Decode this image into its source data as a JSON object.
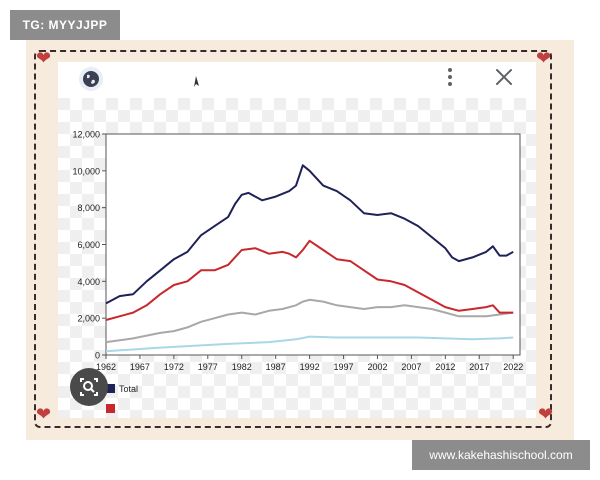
{
  "overlay": {
    "tag_label": "TG: MYYJJPP",
    "site_label": "www.kakehashischool.com"
  },
  "icons": {
    "globe": "globe-icon",
    "cursor": "cursor-icon",
    "menu": "more-vertical-icon",
    "close": "close-icon",
    "lens": "image-search-icon"
  },
  "colors": {
    "total": "#1f2257",
    "series2": "#c8282d",
    "series3": "#a8a8a8",
    "series4": "#a9d7e8"
  },
  "chart_data": {
    "type": "line",
    "title": "",
    "xlabel": "",
    "ylabel": "",
    "xlim": [
      1962,
      2023
    ],
    "ylim": [
      0,
      12000
    ],
    "yticks": [
      "0",
      "2,000",
      "4,000",
      "6,000",
      "8,000",
      "10,000",
      "12,000"
    ],
    "ytick_values": [
      0,
      2000,
      4000,
      6000,
      8000,
      10000,
      12000
    ],
    "xticks": [
      "1962",
      "1967",
      "1972",
      "1977",
      "1982",
      "1987",
      "1992",
      "1997",
      "2002",
      "2007",
      "2012",
      "2017",
      "2022"
    ],
    "xtick_values": [
      1962,
      1967,
      1972,
      1977,
      1982,
      1987,
      1992,
      1997,
      2002,
      2007,
      2012,
      2017,
      2022
    ],
    "grid": false,
    "legend_position": "bottom-left",
    "series": [
      {
        "name": "Total",
        "color": "#1f2257",
        "x": [
          1962,
          1964,
          1966,
          1968,
          1970,
          1972,
          1974,
          1976,
          1978,
          1980,
          1981,
          1982,
          1983,
          1985,
          1987,
          1989,
          1990,
          1991,
          1992,
          1994,
          1996,
          1998,
          2000,
          2002,
          2004,
          2006,
          2008,
          2010,
          2012,
          2013,
          2014,
          2016,
          2018,
          2019,
          2020,
          2021,
          2022
        ],
        "y": [
          2800,
          3200,
          3300,
          4000,
          4600,
          5200,
          5600,
          6500,
          7000,
          7500,
          8200,
          8700,
          8800,
          8400,
          8600,
          8900,
          9200,
          10300,
          10000,
          9200,
          8900,
          8400,
          7700,
          7600,
          7700,
          7400,
          7000,
          6400,
          5800,
          5300,
          5100,
          5300,
          5600,
          5900,
          5400,
          5400,
          5600
        ]
      },
      {
        "name": "",
        "color": "#c8282d",
        "x": [
          1962,
          1964,
          1966,
          1968,
          1970,
          1972,
          1974,
          1976,
          1978,
          1980,
          1982,
          1984,
          1986,
          1988,
          1989,
          1990,
          1991,
          1992,
          1994,
          1996,
          1998,
          2000,
          2002,
          2004,
          2006,
          2008,
          2010,
          2012,
          2014,
          2016,
          2018,
          2019,
          2020,
          2022
        ],
        "y": [
          1900,
          2100,
          2300,
          2700,
          3300,
          3800,
          4000,
          4600,
          4600,
          4900,
          5700,
          5800,
          5500,
          5600,
          5500,
          5300,
          5700,
          6200,
          5700,
          5200,
          5100,
          4600,
          4100,
          4000,
          3800,
          3400,
          3000,
          2600,
          2400,
          2500,
          2600,
          2700,
          2300,
          2300
        ]
      },
      {
        "name": "",
        "color": "#a8a8a8",
        "x": [
          1962,
          1966,
          1970,
          1972,
          1974,
          1976,
          1978,
          1980,
          1982,
          1984,
          1986,
          1988,
          1990,
          1991,
          1992,
          1994,
          1996,
          1998,
          2000,
          2002,
          2004,
          2006,
          2008,
          2010,
          2012,
          2014,
          2016,
          2018,
          2020,
          2022
        ],
        "y": [
          700,
          900,
          1200,
          1300,
          1500,
          1800,
          2000,
          2200,
          2300,
          2200,
          2400,
          2500,
          2700,
          2900,
          3000,
          2900,
          2700,
          2600,
          2500,
          2600,
          2600,
          2700,
          2600,
          2500,
          2300,
          2100,
          2100,
          2100,
          2200,
          2300
        ]
      },
      {
        "name": "",
        "color": "#a9d7e8",
        "x": [
          1962,
          1970,
          1980,
          1986,
          1990,
          1992,
          1996,
          2000,
          2004,
          2008,
          2012,
          2016,
          2020,
          2022
        ],
        "y": [
          200,
          400,
          600,
          700,
          850,
          1000,
          950,
          950,
          950,
          950,
          900,
          850,
          900,
          950
        ]
      }
    ]
  }
}
